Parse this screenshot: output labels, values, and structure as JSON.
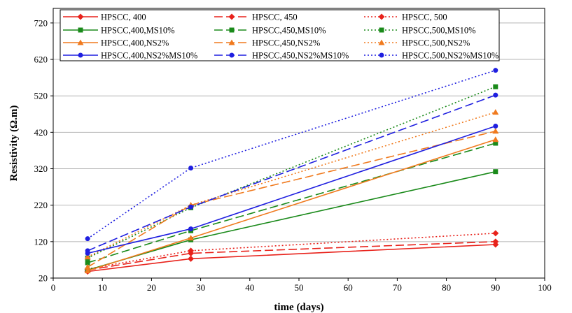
{
  "chart_data": {
    "type": "line",
    "title": "",
    "xlabel": "time (days)",
    "ylabel": "Resistivity (Ω.m)",
    "xlim": [
      0,
      100
    ],
    "ylim": [
      20,
      760
    ],
    "x_ticks": [
      0,
      10,
      20,
      30,
      40,
      50,
      60,
      70,
      80,
      90,
      100
    ],
    "y_ticks": [
      20,
      120,
      220,
      320,
      420,
      520,
      620,
      720
    ],
    "grid": "horizontal",
    "legend_position": "top",
    "x": [
      7,
      28,
      90
    ],
    "series": [
      {
        "name": "HPSCC, 400",
        "color": "#e8221b",
        "dash": "solid",
        "marker": "diamond",
        "values": [
          38,
          73,
          112
        ]
      },
      {
        "name": "HPSCC, 450",
        "color": "#e8221b",
        "dash": "dashed",
        "marker": "diamond",
        "values": [
          42,
          88,
          120
        ]
      },
      {
        "name": "HPSCC, 500",
        "color": "#e8221b",
        "dash": "dotted",
        "marker": "diamond",
        "values": [
          45,
          95,
          143
        ]
      },
      {
        "name": "HPSCC,400,MS10%",
        "color": "#1a8a1a",
        "dash": "solid",
        "marker": "square",
        "values": [
          42,
          125,
          312
        ]
      },
      {
        "name": "HPSCC,450,MS10%",
        "color": "#1a8a1a",
        "dash": "dashed",
        "marker": "square",
        "values": [
          62,
          150,
          390
        ]
      },
      {
        "name": "HPSCC,500,MS10%",
        "color": "#1a8a1a",
        "dash": "dotted",
        "marker": "square",
        "values": [
          75,
          213,
          545
        ]
      },
      {
        "name": "HPSCC,400,NS2%",
        "color": "#f07a1e",
        "dash": "solid",
        "marker": "triangle",
        "values": [
          40,
          130,
          400
        ]
      },
      {
        "name": "HPSCC,450,NS2%",
        "color": "#f07a1e",
        "dash": "dashed",
        "marker": "triangle",
        "values": [
          50,
          220,
          423
        ]
      },
      {
        "name": "HPSCC,500,NS2%",
        "color": "#f07a1e",
        "dash": "dotted",
        "marker": "triangle",
        "values": [
          78,
          220,
          475
        ]
      },
      {
        "name": "HPSCC,400,NS2%MS10%",
        "color": "#1f1fe0",
        "dash": "solid",
        "marker": "circle",
        "values": [
          88,
          155,
          437
        ]
      },
      {
        "name": "HPSCC,450,NS2%MS10%",
        "color": "#1f1fe0",
        "dash": "dashed",
        "marker": "circle",
        "values": [
          95,
          215,
          522
        ]
      },
      {
        "name": "HPSCC,500,NS2%MS10%",
        "color": "#1f1fe0",
        "dash": "dotted",
        "marker": "circle",
        "values": [
          128,
          322,
          590
        ]
      }
    ]
  }
}
